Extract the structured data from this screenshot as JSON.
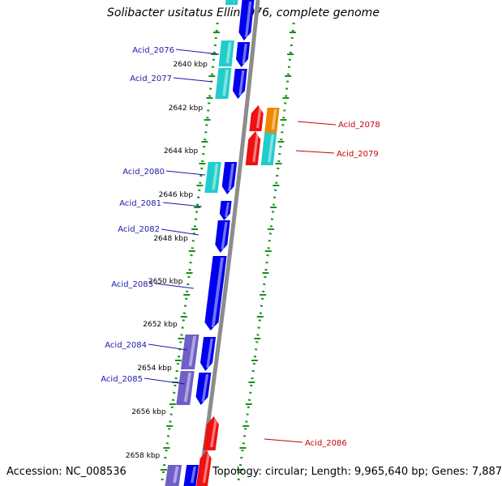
{
  "title": "Solibacter usitatus Ellin6076, complete genome",
  "footer": {
    "accession_label": "Accession: NC_008536",
    "topology_label": "Topology: circular; Length: 9,965,640 bp; Genes: 7,887"
  },
  "colors": {
    "backbone": "#8c8c8c",
    "dotted_track": "#1a8f1a",
    "gene_blue": "#0000ee",
    "gene_cyan": "#22cccc",
    "gene_red": "#ee1111",
    "gene_orange": "#ee8800",
    "gene_purple": "#6f5fc8",
    "label_blue": "#1a1aaa",
    "label_red": "#cc0000"
  },
  "kbp_ticks": [
    "2640 kbp",
    "2642 kbp",
    "2644 kbp",
    "2646 kbp",
    "2648 kbp",
    "2650 kbp",
    "2652 kbp",
    "2654 kbp",
    "2656 kbp",
    "2658 kbp"
  ],
  "gene_labels": [
    {
      "text": "Acid_2076",
      "strand": "forward"
    },
    {
      "text": "Acid_2077",
      "strand": "forward"
    },
    {
      "text": "Acid_2078",
      "strand": "reverse"
    },
    {
      "text": "Acid_2079",
      "strand": "reverse"
    },
    {
      "text": "Acid_2080",
      "strand": "forward"
    },
    {
      "text": "Acid_2081",
      "strand": "forward"
    },
    {
      "text": "Acid_2082",
      "strand": "forward"
    },
    {
      "text": "Acid_2083",
      "strand": "forward"
    },
    {
      "text": "Acid_2084",
      "strand": "forward"
    },
    {
      "text": "Acid_2085",
      "strand": "forward"
    },
    {
      "text": "Acid_2086",
      "strand": "reverse"
    }
  ]
}
